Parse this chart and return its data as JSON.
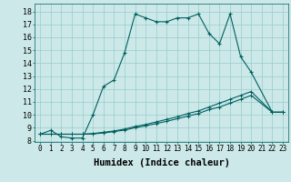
{
  "title": "",
  "xlabel": "Humidex (Indice chaleur)",
  "bg_color": "#cce8e8",
  "line_color": "#006060",
  "grid_color": "#99cccc",
  "xlim": [
    -0.5,
    23.5
  ],
  "ylim": [
    7.9,
    18.6
  ],
  "xtick_labels": [
    "0",
    "1",
    "2",
    "3",
    "4",
    "5",
    "6",
    "7",
    "8",
    "9",
    "10",
    "11",
    "12",
    "13",
    "14",
    "15",
    "16",
    "17",
    "18",
    "19",
    "20",
    "21",
    "22",
    "23"
  ],
  "ytick_vals": [
    8,
    9,
    10,
    11,
    12,
    13,
    14,
    15,
    16,
    17,
    18
  ],
  "line1_x": [
    0,
    1,
    2,
    3,
    4,
    5,
    6,
    7,
    8,
    9,
    10,
    11,
    12,
    13,
    14,
    15,
    16,
    17,
    18,
    19,
    20,
    22,
    23
  ],
  "line1_y": [
    8.5,
    8.8,
    8.3,
    8.2,
    8.2,
    10.0,
    12.2,
    12.7,
    14.8,
    17.8,
    17.5,
    17.2,
    17.2,
    17.5,
    17.5,
    17.8,
    16.3,
    15.5,
    17.8,
    14.5,
    13.3,
    10.2,
    10.2
  ],
  "line2_x": [
    0,
    1,
    2,
    3,
    4,
    5,
    6,
    7,
    8,
    9,
    10,
    11,
    12,
    13,
    14,
    15,
    16,
    17,
    18,
    19,
    20,
    22,
    23
  ],
  "line2_y": [
    8.5,
    8.5,
    8.5,
    8.5,
    8.5,
    8.55,
    8.65,
    8.75,
    8.9,
    9.1,
    9.25,
    9.45,
    9.65,
    9.85,
    10.1,
    10.3,
    10.6,
    10.9,
    11.2,
    11.5,
    11.8,
    10.2,
    10.2
  ],
  "line3_x": [
    0,
    1,
    2,
    3,
    4,
    5,
    6,
    7,
    8,
    9,
    10,
    11,
    12,
    13,
    14,
    15,
    16,
    17,
    18,
    19,
    20,
    22,
    23
  ],
  "line3_y": [
    8.5,
    8.5,
    8.5,
    8.5,
    8.5,
    8.52,
    8.6,
    8.7,
    8.82,
    9.0,
    9.15,
    9.32,
    9.5,
    9.7,
    9.9,
    10.1,
    10.4,
    10.6,
    10.9,
    11.2,
    11.5,
    10.2,
    10.2
  ],
  "xlabel_fontsize": 7.5,
  "ytick_fontsize": 6,
  "xtick_fontsize": 5.5
}
